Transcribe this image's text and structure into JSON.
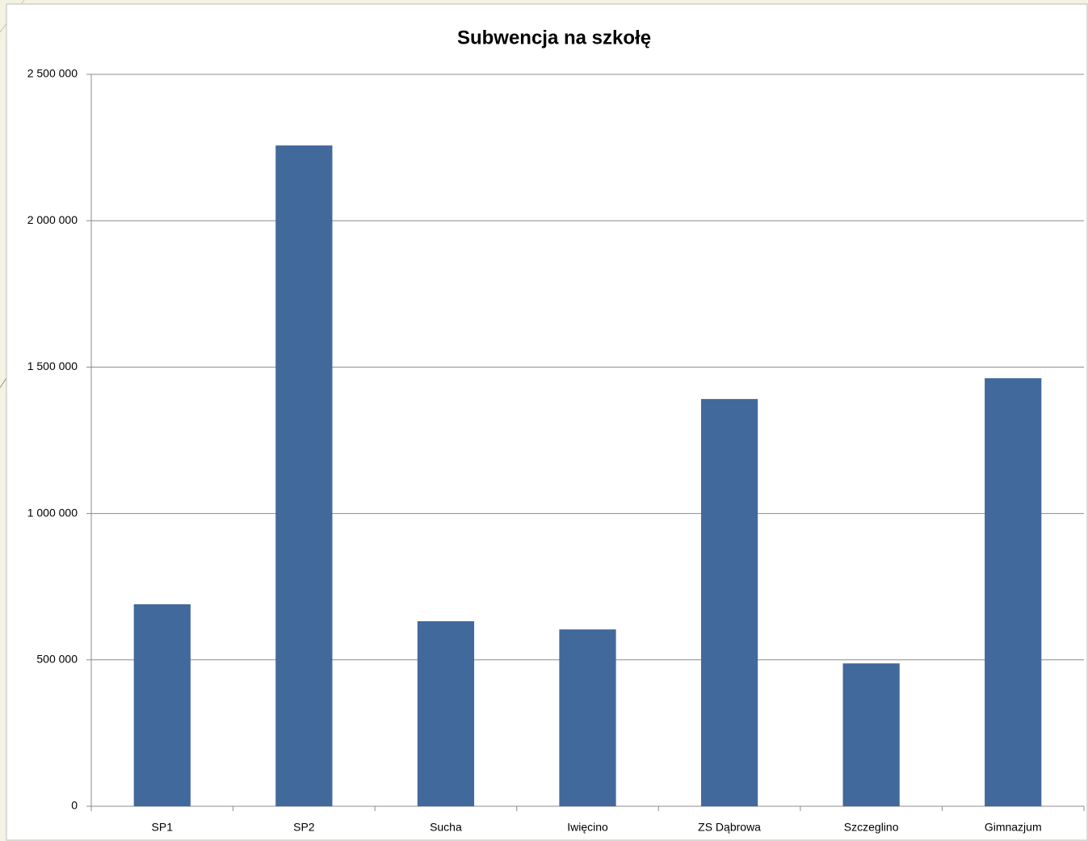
{
  "chart_data": {
    "type": "bar",
    "title": "Subwencja na szkołę",
    "categories": [
      "SP1",
      "SP2",
      "Sucha",
      "Iwięcino",
      "ZS Dąbrowa",
      "Szczeglino",
      "Gimnazjum"
    ],
    "values": [
      690000,
      2257000,
      632000,
      604000,
      1391000,
      488000,
      1462000
    ],
    "color": "#41699c",
    "ylim": [
      0,
      2500000
    ],
    "yticks": [
      0,
      {
        "value": 500000,
        "label": "500 000"
      },
      {
        "value": 1000000,
        "label": "1 000 000"
      },
      {
        "value": 1500000,
        "label": "1 500 000"
      },
      {
        "value": 2000000,
        "label": "2 000 000"
      },
      {
        "value": 2500000,
        "label": "2 500 000"
      }
    ],
    "grid": true
  }
}
